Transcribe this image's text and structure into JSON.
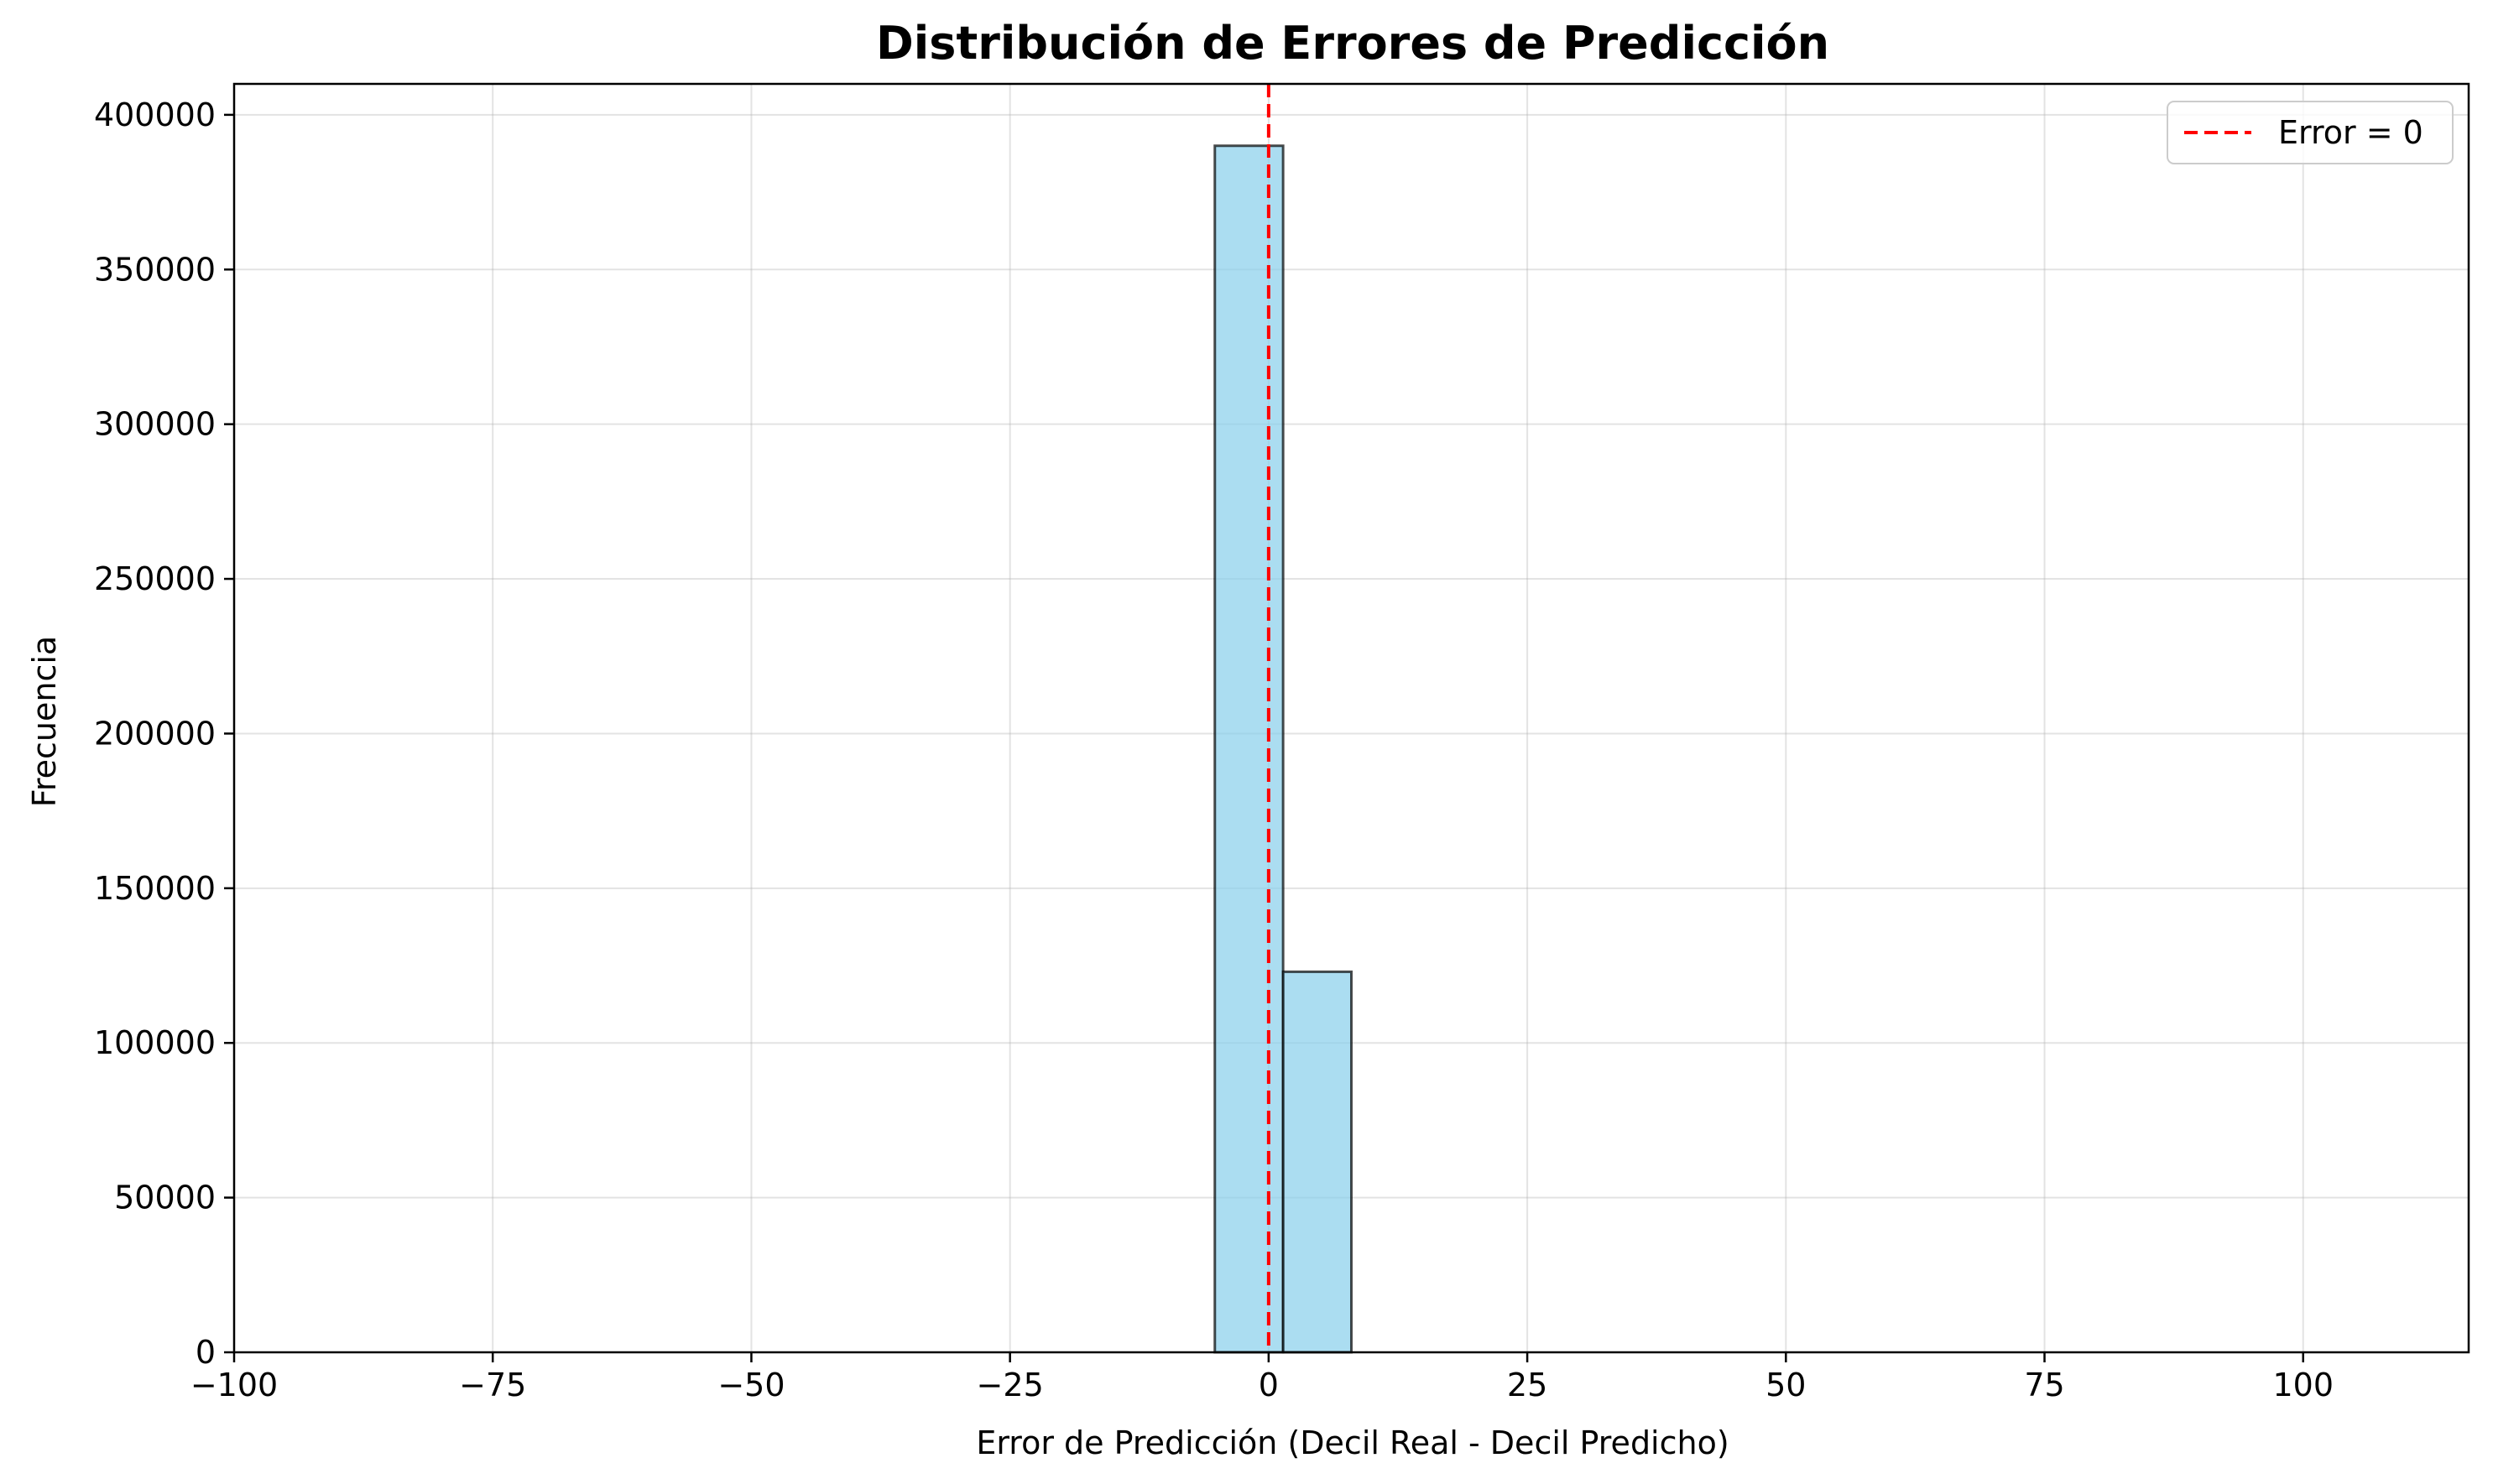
{
  "chart_data": {
    "type": "bar",
    "title": "Distribución de Errores de Predicción",
    "xlabel": "Error de Predicción (Decil Real - Decil Predicho)",
    "ylabel": "Frecuencia",
    "xlim": [
      -100,
      116
    ],
    "ylim": [
      0,
      410000
    ],
    "xticks": [
      -100,
      -75,
      -50,
      -25,
      0,
      25,
      50,
      75,
      100
    ],
    "xtick_labels": [
      "−100",
      "−75",
      "−50",
      "−25",
      "0",
      "25",
      "50",
      "75",
      "100"
    ],
    "yticks": [
      0,
      50000,
      100000,
      150000,
      200000,
      250000,
      300000,
      350000,
      400000
    ],
    "ytick_labels": [
      "0",
      "50000",
      "100000",
      "150000",
      "200000",
      "250000",
      "300000",
      "350000",
      "400000"
    ],
    "grid": true,
    "legend_position": "top-right",
    "bar_color": "#87CEEB",
    "bar_edge_color": "#000000",
    "reference_line": {
      "x": 0,
      "label": "Error = 0",
      "color": "#ff0000",
      "style": "dashed"
    },
    "bins": [
      {
        "x0": -91.0,
        "x1": -84.4,
        "value": 0
      },
      {
        "x0": -84.4,
        "x1": -77.8,
        "value": 0
      },
      {
        "x0": -77.8,
        "x1": -71.2,
        "value": 0
      },
      {
        "x0": -71.2,
        "x1": -64.6,
        "value": 0
      },
      {
        "x0": -64.6,
        "x1": -58.0,
        "value": 0
      },
      {
        "x0": -58.0,
        "x1": -51.4,
        "value": 0
      },
      {
        "x0": -51.4,
        "x1": -44.8,
        "value": 0
      },
      {
        "x0": -44.8,
        "x1": -38.2,
        "value": 0
      },
      {
        "x0": -38.2,
        "x1": -31.6,
        "value": 0
      },
      {
        "x0": -31.6,
        "x1": -25.0,
        "value": 0
      },
      {
        "x0": -25.0,
        "x1": -18.4,
        "value": 0
      },
      {
        "x0": -18.4,
        "x1": -11.8,
        "value": 0
      },
      {
        "x0": -11.8,
        "x1": -5.2,
        "value": 0
      },
      {
        "x0": -5.2,
        "x1": 1.4,
        "value": 390000
      },
      {
        "x0": 1.4,
        "x1": 8.0,
        "value": 123000
      },
      {
        "x0": 8.0,
        "x1": 14.6,
        "value": 0
      },
      {
        "x0": 14.6,
        "x1": 21.2,
        "value": 0
      },
      {
        "x0": 21.2,
        "x1": 27.8,
        "value": 0
      },
      {
        "x0": 27.8,
        "x1": 34.4,
        "value": 0
      },
      {
        "x0": 34.4,
        "x1": 41.0,
        "value": 0
      },
      {
        "x0": 41.0,
        "x1": 47.6,
        "value": 0
      },
      {
        "x0": 47.6,
        "x1": 54.2,
        "value": 0
      },
      {
        "x0": 54.2,
        "x1": 60.8,
        "value": 0
      },
      {
        "x0": 60.8,
        "x1": 67.4,
        "value": 0
      },
      {
        "x0": 67.4,
        "x1": 74.0,
        "value": 0
      },
      {
        "x0": 74.0,
        "x1": 80.6,
        "value": 0
      },
      {
        "x0": 80.6,
        "x1": 87.2,
        "value": 0
      },
      {
        "x0": 87.2,
        "x1": 93.8,
        "value": 0
      },
      {
        "x0": 93.8,
        "x1": 100.4,
        "value": 0
      },
      {
        "x0": 100.4,
        "x1": 107.0,
        "value": 0
      }
    ]
  }
}
